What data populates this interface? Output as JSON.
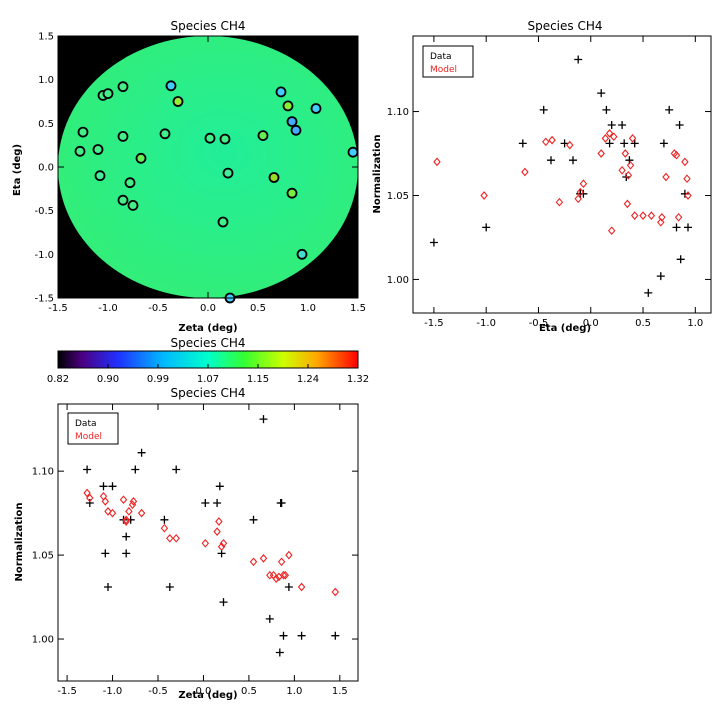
{
  "chart_data": [
    {
      "id": "map",
      "type": "scatter",
      "title": "Species CH4",
      "xlabel": "Zeta (deg)",
      "ylabel": "Eta (deg)",
      "xlim": [
        -1.5,
        1.5
      ],
      "ylim": [
        -1.5,
        1.5
      ],
      "xticks": [
        "-1.5",
        "-1.0",
        "-0.5",
        "0.0",
        "0.5",
        "1.0",
        "1.5"
      ],
      "yticks": [
        "-1.5",
        "-1.0",
        "-0.5",
        "0.0",
        "0.5",
        "1.0",
        "1.5"
      ],
      "background": "black",
      "disk_color": "#33ff99",
      "points": [
        {
          "x": -0.37,
          "y": 0.93,
          "c": "#44ccff"
        },
        {
          "x": -0.3,
          "y": 0.75,
          "c": "#99ee33"
        },
        {
          "x": -0.85,
          "y": 0.92,
          "c": "#44ee88"
        },
        {
          "x": -1.05,
          "y": 0.82,
          "c": "#44ee88"
        },
        {
          "x": -1.0,
          "y": 0.84,
          "c": "#44ee88"
        },
        {
          "x": -1.25,
          "y": 0.4,
          "c": "#44ee88"
        },
        {
          "x": -1.28,
          "y": 0.18,
          "c": "#44ee88"
        },
        {
          "x": -1.1,
          "y": 0.2,
          "c": "#44ee88"
        },
        {
          "x": -0.85,
          "y": 0.35,
          "c": "#44ee88"
        },
        {
          "x": -0.67,
          "y": 0.1,
          "c": "#66ee55"
        },
        {
          "x": -0.43,
          "y": 0.38,
          "c": "#44ee88"
        },
        {
          "x": -1.08,
          "y": -0.1,
          "c": "#44ee99"
        },
        {
          "x": -0.78,
          "y": -0.18,
          "c": "#44ee88"
        },
        {
          "x": -0.85,
          "y": -0.38,
          "c": "#44ee88"
        },
        {
          "x": -0.75,
          "y": -0.44,
          "c": "#44ee88"
        },
        {
          "x": 0.02,
          "y": 0.33,
          "c": "#44ee88"
        },
        {
          "x": 0.17,
          "y": 0.32,
          "c": "#44ee88"
        },
        {
          "x": 0.2,
          "y": -0.07,
          "c": "#44ee99"
        },
        {
          "x": 0.15,
          "y": -0.63,
          "c": "#44ee88"
        },
        {
          "x": 0.55,
          "y": 0.36,
          "c": "#66ee55"
        },
        {
          "x": 0.66,
          "y": -0.12,
          "c": "#99dd22"
        },
        {
          "x": 0.73,
          "y": 0.86,
          "c": "#44ccff"
        },
        {
          "x": 0.8,
          "y": 0.7,
          "c": "#88ee33"
        },
        {
          "x": 0.84,
          "y": 0.52,
          "c": "#44aaff"
        },
        {
          "x": 0.88,
          "y": 0.42,
          "c": "#44aaff"
        },
        {
          "x": 1.08,
          "y": 0.67,
          "c": "#44ccff"
        },
        {
          "x": 0.84,
          "y": -0.3,
          "c": "#77ee44"
        },
        {
          "x": 0.94,
          "y": -1.0,
          "c": "#44ddcc"
        },
        {
          "x": 1.45,
          "y": 0.17,
          "c": "#44ccff"
        },
        {
          "x": 0.22,
          "y": -1.5,
          "c": "#44ccff"
        }
      ]
    },
    {
      "id": "colorbar",
      "type": "heatmap",
      "title": "Species CH4",
      "ticks": [
        "0.82",
        "0.90",
        "0.99",
        "1.07",
        "1.15",
        "1.24",
        "1.32"
      ],
      "range": [
        0.82,
        1.32
      ],
      "colormap": "rainbow"
    },
    {
      "id": "eta",
      "type": "scatter",
      "title": "Species CH4",
      "xlabel": "Eta (deg)",
      "ylabel": "Normalization",
      "xlim": [
        -1.7,
        1.15
      ],
      "ylim": [
        0.98,
        1.145
      ],
      "xticks": [
        -1.5,
        -1.0,
        -0.5,
        0.0,
        0.5,
        1.0
      ],
      "xtick_labels": [
        "-1.5",
        "-1.0",
        "-0.5",
        "0.0",
        "0.5",
        "1.0"
      ],
      "yticks": [
        1.0,
        1.05,
        1.1
      ],
      "ytick_labels": [
        "1.00",
        "1.05",
        "1.10"
      ],
      "legend": {
        "position": "top-left",
        "entries": [
          "Data",
          "Model"
        ]
      },
      "series": [
        {
          "name": "Data",
          "marker": "plus",
          "color": "#000000",
          "x": [
            -1.5,
            -1.0,
            -0.65,
            -0.45,
            -0.38,
            -0.25,
            -0.17,
            -0.12,
            -0.1,
            -0.1,
            -0.07,
            0.1,
            0.15,
            0.18,
            0.2,
            0.3,
            0.32,
            0.34,
            0.37,
            0.42,
            0.55,
            0.67,
            0.7,
            0.75,
            0.82,
            0.85,
            0.86,
            0.9,
            0.93
          ],
          "y": [
            1.022,
            1.031,
            1.081,
            1.101,
            1.071,
            1.081,
            1.071,
            1.131,
            1.051,
            1.051,
            1.051,
            1.111,
            1.101,
            1.081,
            1.092,
            1.092,
            1.081,
            1.061,
            1.071,
            1.081,
            0.992,
            1.002,
            1.081,
            1.101,
            1.031,
            1.092,
            1.012,
            1.051,
            1.031
          ]
        },
        {
          "name": "Model",
          "marker": "diamond",
          "color": "#ee2222",
          "x": [
            -1.47,
            -1.02,
            -0.63,
            -0.43,
            -0.37,
            -0.3,
            -0.2,
            -0.12,
            -0.1,
            -0.07,
            0.1,
            0.14,
            0.18,
            0.2,
            0.22,
            0.3,
            0.33,
            0.35,
            0.36,
            0.38,
            0.4,
            0.42,
            0.5,
            0.58,
            0.67,
            0.68,
            0.72,
            0.8,
            0.82,
            0.84,
            0.9,
            0.92,
            0.93
          ],
          "y": [
            1.07,
            1.05,
            1.064,
            1.082,
            1.083,
            1.046,
            1.08,
            1.048,
            1.052,
            1.057,
            1.075,
            1.084,
            1.087,
            1.029,
            1.085,
            1.065,
            1.075,
            1.045,
            1.062,
            1.068,
            1.084,
            1.038,
            1.038,
            1.038,
            1.034,
            1.037,
            1.061,
            1.075,
            1.074,
            1.037,
            1.07,
            1.06,
            1.05
          ]
        }
      ]
    },
    {
      "id": "zeta",
      "type": "scatter",
      "title": "Species CH4",
      "xlabel": "Zeta (deg)",
      "ylabel": "Normalization",
      "xlim": [
        -1.6,
        1.7
      ],
      "ylim": [
        0.975,
        1.14
      ],
      "xticks": [
        -1.5,
        -1.0,
        -0.5,
        0.0,
        0.5,
        1.0,
        1.5
      ],
      "xtick_labels": [
        "-1.5",
        "-1.0",
        "-0.5",
        "0.0",
        "0.5",
        "1.0",
        "1.5"
      ],
      "yticks": [
        1.0,
        1.05,
        1.1
      ],
      "ytick_labels": [
        "1.00",
        "1.05",
        "1.10"
      ],
      "legend": {
        "position": "top-left",
        "entries": [
          "Data",
          "Model"
        ]
      },
      "series": [
        {
          "name": "Data",
          "marker": "plus",
          "color": "#000000",
          "x": [
            -1.28,
            -1.25,
            -1.1,
            -1.08,
            -1.05,
            -1.0,
            -0.88,
            -0.85,
            -0.85,
            -0.8,
            -0.75,
            -0.68,
            -0.43,
            -0.37,
            -0.3,
            0.02,
            0.15,
            0.18,
            0.2,
            0.22,
            0.55,
            0.66,
            0.73,
            0.84,
            0.85,
            0.86,
            0.88,
            0.94,
            1.08,
            1.45
          ],
          "y": [
            1.101,
            1.081,
            1.091,
            1.051,
            1.031,
            1.091,
            1.071,
            1.061,
            1.051,
            1.071,
            1.101,
            1.111,
            1.071,
            1.031,
            1.101,
            1.081,
            1.081,
            1.091,
            1.051,
            1.022,
            1.071,
            1.131,
            1.012,
            0.992,
            1.081,
            1.081,
            1.002,
            1.031,
            1.002,
            1.002
          ]
        },
        {
          "name": "Model",
          "marker": "diamond",
          "color": "#ee2222",
          "x": [
            -1.28,
            -1.25,
            -1.1,
            -1.08,
            -1.05,
            -1.0,
            -0.88,
            -0.85,
            -0.85,
            -0.82,
            -0.78,
            -0.77,
            -0.68,
            -0.43,
            -0.37,
            -0.3,
            0.02,
            0.15,
            0.17,
            0.2,
            0.22,
            0.55,
            0.66,
            0.73,
            0.77,
            0.8,
            0.83,
            0.86,
            0.88,
            0.9,
            0.94,
            1.08,
            1.45
          ],
          "y": [
            1.087,
            1.084,
            1.085,
            1.082,
            1.076,
            1.075,
            1.083,
            1.071,
            1.07,
            1.076,
            1.08,
            1.082,
            1.075,
            1.066,
            1.06,
            1.06,
            1.057,
            1.064,
            1.07,
            1.055,
            1.057,
            1.046,
            1.048,
            1.038,
            1.038,
            1.036,
            1.037,
            1.046,
            1.038,
            1.038,
            1.05,
            1.031,
            1.028
          ]
        }
      ]
    }
  ]
}
